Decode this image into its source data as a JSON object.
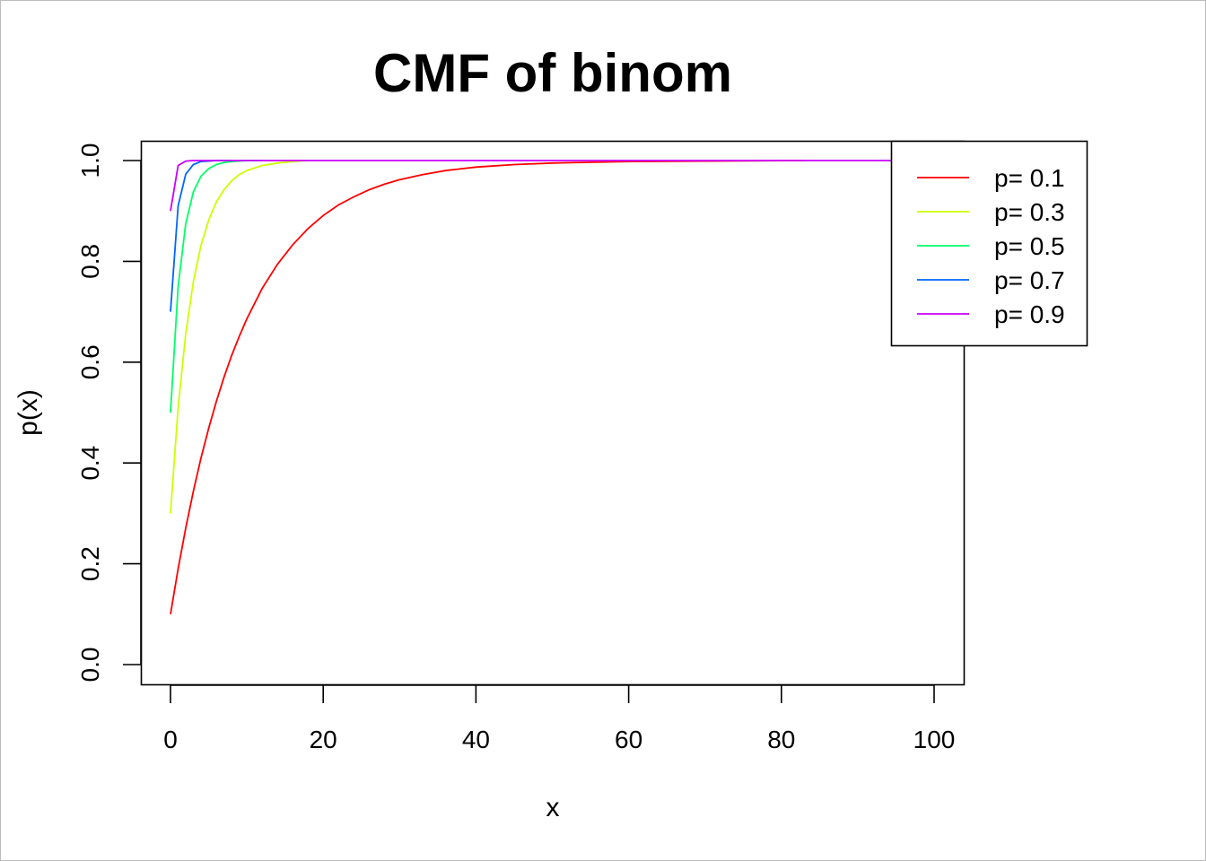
{
  "chart_data": {
    "type": "line",
    "title": "CMF of binom",
    "xlabel": "x",
    "ylabel": "p(x)",
    "xlim": [
      0,
      100
    ],
    "ylim": [
      0.0,
      1.0
    ],
    "x_ticks": [
      "0",
      "20",
      "40",
      "60",
      "80",
      "100"
    ],
    "y_ticks": [
      "0.0",
      "0.2",
      "0.4",
      "0.6",
      "0.8",
      "1.0"
    ],
    "legend_position": "top-right",
    "grid": false,
    "series": [
      {
        "name": "p= 0.1",
        "color": "#ff0000",
        "points": [
          [
            0,
            0.1
          ],
          [
            1,
            0.19
          ],
          [
            2,
            0.271
          ],
          [
            3,
            0.344
          ],
          [
            4,
            0.41
          ],
          [
            5,
            0.469
          ],
          [
            6,
            0.522
          ],
          [
            7,
            0.57
          ],
          [
            8,
            0.613
          ],
          [
            9,
            0.651
          ],
          [
            10,
            0.686
          ],
          [
            12,
            0.746
          ],
          [
            14,
            0.794
          ],
          [
            16,
            0.833
          ],
          [
            18,
            0.865
          ],
          [
            20,
            0.891
          ],
          [
            22,
            0.912
          ],
          [
            24,
            0.928
          ],
          [
            26,
            0.942
          ],
          [
            28,
            0.953
          ],
          [
            30,
            0.962
          ],
          [
            33,
            0.972
          ],
          [
            36,
            0.98
          ],
          [
            40,
            0.987
          ],
          [
            45,
            0.992
          ],
          [
            50,
            0.995
          ],
          [
            60,
            0.998
          ],
          [
            70,
            0.999
          ],
          [
            83,
            1.0
          ]
        ]
      },
      {
        "name": "p= 0.3",
        "color": "#ccff00",
        "points": [
          [
            0,
            0.3
          ],
          [
            1,
            0.51
          ],
          [
            2,
            0.657
          ],
          [
            3,
            0.76
          ],
          [
            4,
            0.832
          ],
          [
            5,
            0.882
          ],
          [
            6,
            0.918
          ],
          [
            7,
            0.942
          ],
          [
            8,
            0.96
          ],
          [
            9,
            0.972
          ],
          [
            10,
            0.98
          ],
          [
            12,
            0.99
          ],
          [
            14,
            0.995
          ],
          [
            16,
            0.998
          ],
          [
            18,
            1.0
          ]
        ]
      },
      {
        "name": "p= 0.5",
        "color": "#00ff66",
        "points": [
          [
            0,
            0.5
          ],
          [
            1,
            0.75
          ],
          [
            2,
            0.875
          ],
          [
            3,
            0.938
          ],
          [
            4,
            0.969
          ],
          [
            5,
            0.984
          ],
          [
            6,
            0.992
          ],
          [
            7,
            0.996
          ],
          [
            8,
            0.998
          ],
          [
            10,
            1.0
          ],
          [
            12,
            1.0
          ]
        ]
      },
      {
        "name": "p= 0.7",
        "color": "#0066ff",
        "points": [
          [
            0,
            0.7
          ],
          [
            1,
            0.91
          ],
          [
            2,
            0.973
          ],
          [
            3,
            0.992
          ],
          [
            4,
            0.998
          ],
          [
            5,
            0.999
          ],
          [
            6,
            1.0
          ],
          [
            8,
            1.0
          ]
        ]
      },
      {
        "name": "p= 0.9",
        "color": "#cc00ff",
        "points": [
          [
            0,
            0.9
          ],
          [
            1,
            0.99
          ],
          [
            2,
            0.999
          ],
          [
            3,
            1.0
          ],
          [
            100,
            1.0
          ]
        ]
      }
    ]
  }
}
